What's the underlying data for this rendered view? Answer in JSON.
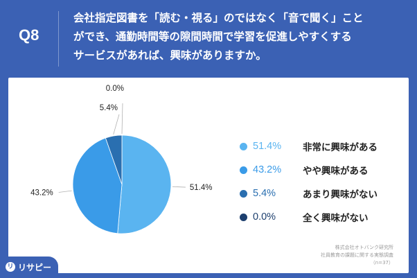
{
  "header": {
    "question_number": "Q8",
    "question_lines": [
      "会社指定図書を「読む・視る」のではなく「音で聞く」こと",
      "ができ、通勤時間等の隙間時間で学習を促進しやすくする",
      "サービスがあれば、興味がありますか。"
    ]
  },
  "legend": [
    {
      "percent": "51.4%",
      "label": "非常に興味がある"
    },
    {
      "percent": "43.2%",
      "label": "やや興味がある"
    },
    {
      "percent": "5.4%",
      "label": "あまり興味がない"
    },
    {
      "percent": "0.0%",
      "label": "全く興味がない"
    }
  ],
  "source": [
    "株式会社オトバンク研究所",
    "社員教育の課題に関する実態調査",
    "（n=37）"
  ],
  "brand": {
    "mark": "リ",
    "name": "リサピー"
  },
  "colors": {
    "background": "#3b61b4",
    "slice_1": "#5ab4f0",
    "slice_2": "#3a9be8",
    "slice_3": "#2a6fb0",
    "slice_4": "#1d3f6e",
    "legend_pct": "#5ab4f0",
    "label_text": "#222222"
  },
  "chart_data": {
    "type": "pie",
    "title": "",
    "n": 37,
    "slices": [
      {
        "label": "非常に興味がある",
        "value": 51.4,
        "value_label": "51.4%"
      },
      {
        "label": "やや興味がある",
        "value": 43.2,
        "value_label": "43.2%"
      },
      {
        "label": "あまり興味がない",
        "value": 5.4,
        "value_label": "5.4%"
      },
      {
        "label": "全く興味がない",
        "value": 0.0,
        "value_label": "0.0%"
      }
    ],
    "start_angle": "12 o'clock",
    "direction": "clockwise",
    "legend_position": "right"
  }
}
